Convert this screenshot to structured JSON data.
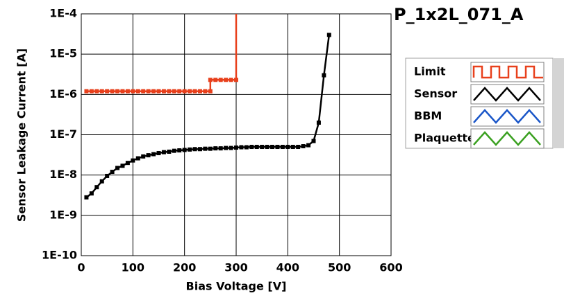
{
  "chart_data": {
    "type": "line",
    "title": "P_1x2L_071_A",
    "x_label": "Bias Voltage [V]",
    "y_label": "Sensor Leakage Current [A]",
    "log_y": true,
    "grid": true,
    "legend": "right",
    "xlim": [
      0,
      600
    ],
    "xticks": [
      0,
      100,
      200,
      300,
      400,
      500,
      600
    ],
    "ylim": [
      1e-10,
      0.0001
    ],
    "yticks": [
      {
        "value": 1e-10,
        "label": "1E-10"
      },
      {
        "value": 1e-09,
        "label": "1E-9"
      },
      {
        "value": 1e-08,
        "label": "1E-8"
      },
      {
        "value": 1e-07,
        "label": "1E-7"
      },
      {
        "value": 1e-06,
        "label": "1E-6"
      },
      {
        "value": 1e-05,
        "label": "1E-5"
      },
      {
        "value": 0.0001,
        "label": "1E-4"
      }
    ],
    "series": [
      {
        "name": "Limit",
        "color": "#e8401c",
        "x": [
          10,
          20,
          30,
          40,
          50,
          60,
          70,
          80,
          90,
          100,
          110,
          120,
          130,
          140,
          150,
          160,
          170,
          180,
          190,
          200,
          210,
          220,
          230,
          240,
          250,
          250,
          260,
          270,
          280,
          290,
          300,
          300
        ],
        "values": [
          1.2e-06,
          1.2e-06,
          1.2e-06,
          1.2e-06,
          1.2e-06,
          1.2e-06,
          1.2e-06,
          1.2e-06,
          1.2e-06,
          1.2e-06,
          1.2e-06,
          1.2e-06,
          1.2e-06,
          1.2e-06,
          1.2e-06,
          1.2e-06,
          1.2e-06,
          1.2e-06,
          1.2e-06,
          1.2e-06,
          1.2e-06,
          1.2e-06,
          1.2e-06,
          1.2e-06,
          1.2e-06,
          2.3e-06,
          2.3e-06,
          2.3e-06,
          2.3e-06,
          2.3e-06,
          2.3e-06,
          0.0001
        ]
      },
      {
        "name": "Sensor",
        "color": "#000000",
        "x": [
          10,
          20,
          30,
          40,
          50,
          60,
          70,
          80,
          90,
          100,
          110,
          120,
          130,
          140,
          150,
          160,
          170,
          180,
          190,
          200,
          210,
          220,
          230,
          240,
          250,
          260,
          270,
          280,
          290,
          300,
          310,
          320,
          330,
          340,
          350,
          360,
          370,
          380,
          390,
          400,
          410,
          420,
          430,
          440,
          450,
          460,
          470,
          480
        ],
        "values": [
          2.8e-09,
          3.5e-09,
          5e-09,
          7e-09,
          9.5e-09,
          1.2e-08,
          1.5e-08,
          1.7e-08,
          2e-08,
          2.3e-08,
          2.6e-08,
          2.9e-08,
          3.1e-08,
          3.3e-08,
          3.5e-08,
          3.7e-08,
          3.8e-08,
          4e-08,
          4.1e-08,
          4.2e-08,
          4.3e-08,
          4.4e-08,
          4.4e-08,
          4.5e-08,
          4.5e-08,
          4.6e-08,
          4.6e-08,
          4.7e-08,
          4.7e-08,
          4.8e-08,
          4.9e-08,
          4.9e-08,
          5e-08,
          5e-08,
          5e-08,
          5e-08,
          5e-08,
          5e-08,
          5e-08,
          5e-08,
          5e-08,
          5e-08,
          5.2e-08,
          5.5e-08,
          7e-08,
          2e-07,
          3e-06,
          3e-05
        ]
      },
      {
        "name": "BBM",
        "color": "#1a56c8",
        "x": [],
        "values": []
      },
      {
        "name": "Plaquette",
        "color": "#3aa020",
        "x": [],
        "values": []
      }
    ]
  }
}
